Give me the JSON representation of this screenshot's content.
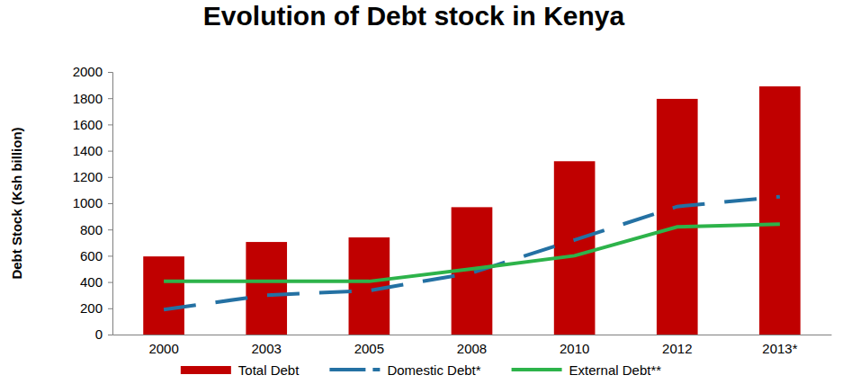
{
  "chart_data": {
    "type": "bar",
    "title": "Evolution of Debt stock in Kenya",
    "y_label": "Debt Stock (Ksh billion)",
    "categories": [
      "2000",
      "2003",
      "2005",
      "2008",
      "2010",
      "2012",
      "2013*"
    ],
    "series": [
      {
        "name": "Total Debt",
        "type": "bar",
        "color": "#c00000",
        "values": [
          595,
          705,
          740,
          970,
          1320,
          1795,
          1890
        ]
      },
      {
        "name": "Domestic Debt*",
        "type": "line",
        "color": "#2471a3",
        "line_style": "dashed",
        "values": [
          190,
          300,
          335,
          470,
          720,
          975,
          1050
        ]
      },
      {
        "name": "External Debt**",
        "type": "line",
        "color": "#2db34a",
        "line_style": "solid",
        "values": [
          405,
          405,
          405,
          500,
          600,
          820,
          840
        ]
      }
    ],
    "ylim": [
      0,
      2000
    ],
    "yticks": [
      0,
      200,
      400,
      600,
      800,
      1000,
      1200,
      1400,
      1600,
      1800,
      2000
    ],
    "grid": false,
    "legend": "bottom"
  }
}
